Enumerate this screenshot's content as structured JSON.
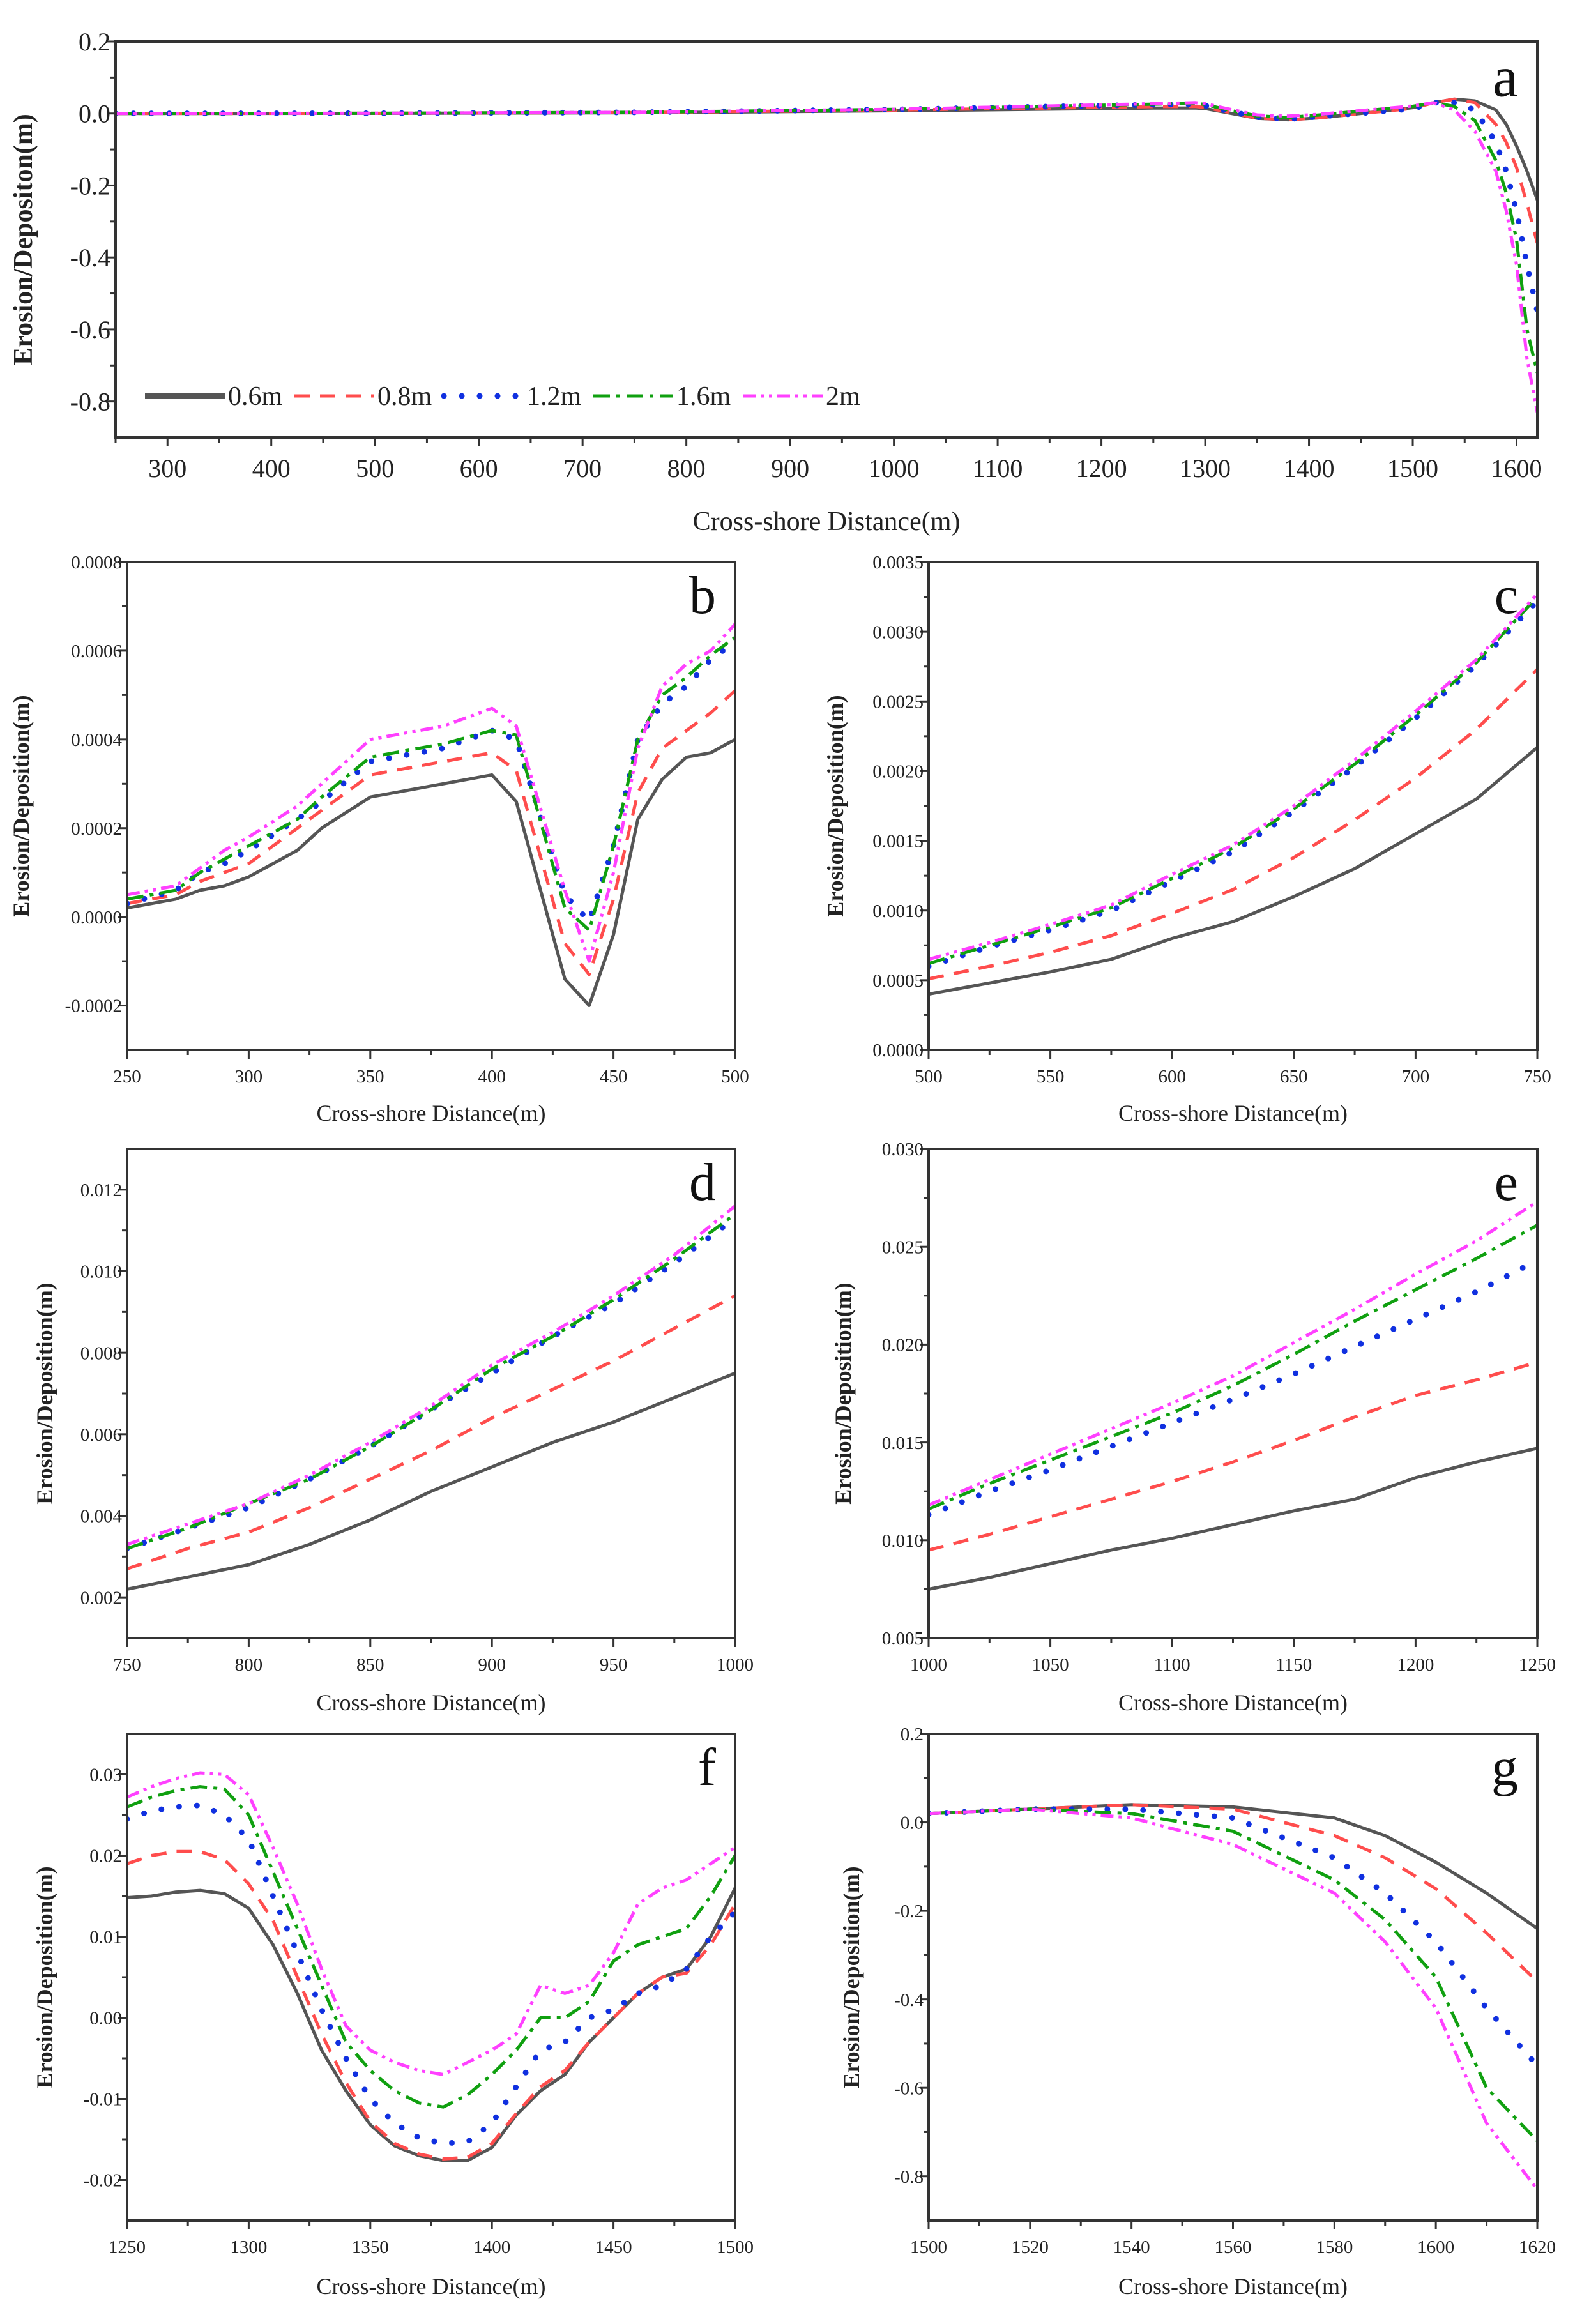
{
  "legend": [
    "0.6m",
    "0.8m",
    "1.2m",
    "1.6m",
    "2m"
  ],
  "series_colors": [
    "#555555",
    "#ff4d4d",
    "#1030e0",
    "#10a010",
    "#ff40ff"
  ],
  "chart_data": [
    {
      "type": "line",
      "label": "a",
      "xlabel": "Cross-shore Distance(m)",
      "ylabel": "Erosion/Depositon(m)",
      "xlim": [
        250,
        1620
      ],
      "ylim": [
        -0.9,
        0.2
      ],
      "xticks": [
        300,
        400,
        500,
        600,
        700,
        800,
        900,
        1000,
        1100,
        1200,
        1300,
        1400,
        1500,
        1600
      ],
      "yticks": [
        "0.2",
        "0.0",
        "-0.2",
        "-0.4",
        "-0.6",
        "-0.8"
      ],
      "x": [
        250,
        500,
        750,
        1000,
        1250,
        1290,
        1300,
        1320,
        1350,
        1380,
        1410,
        1450,
        1500,
        1520,
        1540,
        1560,
        1580,
        1590,
        1600,
        1610,
        1620
      ],
      "series": [
        {
          "name": "0.6m",
          "values": [
            0,
            0.0004,
            0.002,
            0.0075,
            0.015,
            0.0153,
            0.0135,
            0.003,
            -0.0132,
            -0.0176,
            -0.012,
            0,
            0.016,
            0.03,
            0.04,
            0.035,
            0.01,
            -0.03,
            -0.09,
            -0.16,
            -0.24
          ]
        },
        {
          "name": "0.8m",
          "values": [
            0,
            0.0005,
            0.0027,
            0.0095,
            0.019,
            0.0195,
            0.0165,
            0.005,
            -0.0128,
            -0.0174,
            -0.0118,
            0,
            0.014,
            0.03,
            0.04,
            0.03,
            -0.03,
            -0.08,
            -0.15,
            -0.25,
            -0.36
          ]
        },
        {
          "name": "1.2m",
          "values": [
            0,
            0.0006,
            0.0032,
            0.0113,
            0.0245,
            0.025,
            0.022,
            0.008,
            -0.01,
            -0.0155,
            -0.0085,
            0.001,
            0.013,
            0.03,
            0.03,
            0.01,
            -0.08,
            -0.16,
            -0.27,
            -0.42,
            -0.55
          ]
        },
        {
          "name": "1.6m",
          "values": [
            0,
            0.0006,
            0.0032,
            0.0116,
            0.026,
            0.0282,
            0.025,
            0.011,
            -0.0065,
            -0.011,
            -0.004,
            0.007,
            0.02,
            0.03,
            0.02,
            -0.02,
            -0.13,
            -0.22,
            -0.35,
            -0.6,
            -0.72
          ]
        },
        {
          "name": "2m",
          "values": [
            0,
            0.0007,
            0.0033,
            0.0118,
            0.0272,
            0.03,
            0.0275,
            0.014,
            -0.004,
            -0.007,
            -0.002,
            0.008,
            0.021,
            0.03,
            0.01,
            -0.05,
            -0.16,
            -0.27,
            -0.42,
            -0.68,
            -0.83
          ]
        }
      ]
    },
    {
      "type": "line",
      "label": "b",
      "xlabel": "Cross-shore Distance(m)",
      "ylabel": "Erosion/Deposition(m)",
      "xlim": [
        250,
        500
      ],
      "ylim": [
        -0.0003,
        0.0008
      ],
      "xticks": [
        250,
        300,
        350,
        400,
        450,
        500
      ],
      "yticks": [
        "0.0008",
        "0.0006",
        "0.0004",
        "0.0002",
        "0.0000",
        "-0.0002"
      ],
      "x": [
        250,
        270,
        280,
        290,
        300,
        320,
        330,
        350,
        380,
        400,
        410,
        430,
        440,
        450,
        460,
        470,
        480,
        490,
        500
      ],
      "series": [
        {
          "name": "0.6m",
          "values": [
            2e-05,
            4e-05,
            6e-05,
            7e-05,
            9e-05,
            0.00015,
            0.0002,
            0.00027,
            0.0003,
            0.00032,
            0.00026,
            -0.00014,
            -0.0002,
            -4e-05,
            0.00022,
            0.00031,
            0.00036,
            0.00037,
            0.0004
          ]
        },
        {
          "name": "0.8m",
          "values": [
            3e-05,
            5e-05,
            8e-05,
            0.0001,
            0.00012,
            0.0002,
            0.00024,
            0.00032,
            0.00035,
            0.00037,
            0.00033,
            -6e-05,
            -0.00013,
            4e-05,
            0.00028,
            0.00038,
            0.00042,
            0.00046,
            0.00051
          ]
        },
        {
          "name": "1.2m",
          "values": [
            3e-05,
            6e-05,
            0.0001,
            0.00012,
            0.00015,
            0.00022,
            0.00026,
            0.00035,
            0.00038,
            0.00042,
            0.0004,
            5e-05,
            -1e-05,
            0.00016,
            0.0004,
            0.00048,
            0.00052,
            0.00058,
            0.00062
          ]
        },
        {
          "name": "1.6m",
          "values": [
            4e-05,
            6e-05,
            0.0001,
            0.00013,
            0.00016,
            0.00022,
            0.00027,
            0.00036,
            0.00039,
            0.00042,
            0.00041,
            2e-05,
            -3e-05,
            0.00016,
            0.0004,
            0.0005,
            0.00054,
            0.00059,
            0.00063
          ]
        },
        {
          "name": "2m",
          "values": [
            5e-05,
            7e-05,
            0.00011,
            0.00015,
            0.00018,
            0.00025,
            0.0003,
            0.0004,
            0.00043,
            0.00047,
            0.00043,
            6e-05,
            -0.0001,
            0.0001,
            0.00038,
            0.00052,
            0.00057,
            0.0006,
            0.00066
          ]
        }
      ]
    },
    {
      "type": "line",
      "label": "c",
      "xlabel": "Cross-shore Distance(m)",
      "ylabel": "Erosion/Deposition(m)",
      "xlim": [
        500,
        750
      ],
      "ylim": [
        0,
        0.0035
      ],
      "xticks": [
        500,
        550,
        600,
        650,
        700,
        750
      ],
      "yticks": [
        "0.0035",
        "0.0030",
        "0.0025",
        "0.0020",
        "0.0015",
        "0.0010",
        "0.0005",
        "0.0000"
      ],
      "x": [
        500,
        525,
        550,
        575,
        600,
        625,
        650,
        675,
        700,
        725,
        750
      ],
      "series": [
        {
          "name": "0.6m",
          "values": [
            0.0004,
            0.00048,
            0.00056,
            0.00065,
            0.0008,
            0.00092,
            0.0011,
            0.0013,
            0.00155,
            0.0018,
            0.00217
          ]
        },
        {
          "name": "0.8m",
          "values": [
            0.00051,
            0.0006,
            0.0007,
            0.00082,
            0.00098,
            0.00115,
            0.00138,
            0.00165,
            0.00195,
            0.0023,
            0.00273
          ]
        },
        {
          "name": "1.2m",
          "values": [
            0.0006,
            0.00074,
            0.00086,
            0.001,
            0.00121,
            0.00142,
            0.00171,
            0.00203,
            0.00238,
            0.00276,
            0.00322
          ]
        },
        {
          "name": "1.6m",
          "values": [
            0.00062,
            0.00075,
            0.00088,
            0.00102,
            0.00123,
            0.00145,
            0.00173,
            0.00205,
            0.0024,
            0.00278,
            0.00325
          ]
        },
        {
          "name": "2m",
          "values": [
            0.00065,
            0.00077,
            0.0009,
            0.00104,
            0.00126,
            0.00147,
            0.00175,
            0.00208,
            0.00243,
            0.0028,
            0.00327
          ]
        }
      ]
    },
    {
      "type": "line",
      "label": "d",
      "xlabel": "Cross-shore Distance(m)",
      "ylabel": "Erosion/Deposition(m)",
      "xlim": [
        750,
        1000
      ],
      "ylim": [
        0.001,
        0.013
      ],
      "xticks": [
        750,
        800,
        850,
        900,
        950,
        1000
      ],
      "yticks": [
        "0.012",
        "0.010",
        "0.008",
        "0.006",
        "0.004",
        "0.002"
      ],
      "x": [
        750,
        775,
        800,
        825,
        850,
        875,
        900,
        925,
        950,
        975,
        1000
      ],
      "series": [
        {
          "name": "0.6m",
          "values": [
            0.0022,
            0.0025,
            0.0028,
            0.0033,
            0.0039,
            0.0046,
            0.0052,
            0.0058,
            0.0063,
            0.0069,
            0.0075
          ]
        },
        {
          "name": "0.8m",
          "values": [
            0.0027,
            0.0032,
            0.0036,
            0.0042,
            0.0049,
            0.0056,
            0.0064,
            0.0071,
            0.0078,
            0.0086,
            0.0094
          ]
        },
        {
          "name": "1.2m",
          "values": [
            0.0032,
            0.0037,
            0.0042,
            0.0049,
            0.0057,
            0.0066,
            0.0075,
            0.0084,
            0.0092,
            0.0102,
            0.0113
          ]
        },
        {
          "name": "1.6m",
          "values": [
            0.0032,
            0.0037,
            0.0043,
            0.0049,
            0.0057,
            0.0066,
            0.0076,
            0.0084,
            0.0093,
            0.0103,
            0.0114
          ]
        },
        {
          "name": "2m",
          "values": [
            0.0033,
            0.0038,
            0.0043,
            0.005,
            0.0058,
            0.0067,
            0.0077,
            0.0085,
            0.0094,
            0.0104,
            0.0116
          ]
        }
      ]
    },
    {
      "type": "line",
      "label": "e",
      "xlabel": "Cross-shore Distance(m)",
      "ylabel": "Erosion/Deposition(m)",
      "xlim": [
        1000,
        1250
      ],
      "ylim": [
        0.005,
        0.03
      ],
      "xticks": [
        1000,
        1050,
        1100,
        1150,
        1200,
        1250
      ],
      "yticks": [
        "0.030",
        "0.025",
        "0.020",
        "0.015",
        "0.010",
        "0.005"
      ],
      "x": [
        1000,
        1025,
        1050,
        1075,
        1100,
        1125,
        1150,
        1175,
        1200,
        1225,
        1250
      ],
      "series": [
        {
          "name": "0.6m",
          "values": [
            0.0075,
            0.0081,
            0.0088,
            0.0095,
            0.0101,
            0.0108,
            0.0115,
            0.0121,
            0.0132,
            0.014,
            0.0147
          ]
        },
        {
          "name": "0.8m",
          "values": [
            0.0095,
            0.0103,
            0.0112,
            0.0121,
            0.013,
            0.014,
            0.0151,
            0.0163,
            0.0174,
            0.0182,
            0.0191
          ]
        },
        {
          "name": "1.2m",
          "values": [
            0.0113,
            0.0125,
            0.0136,
            0.0148,
            0.016,
            0.0172,
            0.0185,
            0.0199,
            0.0213,
            0.0227,
            0.0243
          ]
        },
        {
          "name": "1.6m",
          "values": [
            0.0116,
            0.0129,
            0.0141,
            0.0153,
            0.0165,
            0.0179,
            0.0195,
            0.0212,
            0.0228,
            0.0244,
            0.0261
          ]
        },
        {
          "name": "2m",
          "values": [
            0.0118,
            0.0131,
            0.0144,
            0.0157,
            0.017,
            0.0184,
            0.0201,
            0.0218,
            0.0236,
            0.0253,
            0.0273
          ]
        }
      ]
    },
    {
      "type": "line",
      "label": "f",
      "xlabel": "Cross-shore Distance(m)",
      "ylabel": "Erosion/Deposition(m)",
      "xlim": [
        1250,
        1500
      ],
      "ylim": [
        -0.025,
        0.035
      ],
      "xticks": [
        1250,
        1300,
        1350,
        1400,
        1450,
        1500
      ],
      "yticks": [
        "0.03",
        "0.02",
        "0.01",
        "0.00",
        "-0.01",
        "-0.02"
      ],
      "x": [
        1250,
        1260,
        1270,
        1280,
        1290,
        1300,
        1310,
        1320,
        1330,
        1340,
        1350,
        1360,
        1370,
        1380,
        1390,
        1400,
        1410,
        1420,
        1430,
        1440,
        1450,
        1460,
        1470,
        1480,
        1490,
        1500
      ],
      "series": [
        {
          "name": "0.6m",
          "values": [
            0.0148,
            0.015,
            0.0155,
            0.0157,
            0.0153,
            0.0135,
            0.009,
            0.003,
            -0.004,
            -0.009,
            -0.0132,
            -0.0158,
            -0.017,
            -0.0176,
            -0.0176,
            -0.016,
            -0.012,
            -0.009,
            -0.007,
            -0.003,
            0,
            0.003,
            0.005,
            0.006,
            0.01,
            0.016
          ]
        },
        {
          "name": "0.8m",
          "values": [
            0.019,
            0.02,
            0.0205,
            0.0205,
            0.0195,
            0.0165,
            0.012,
            0.005,
            -0.002,
            -0.008,
            -0.0128,
            -0.0155,
            -0.0168,
            -0.0174,
            -0.0172,
            -0.0155,
            -0.0118,
            -0.0085,
            -0.0065,
            -0.003,
            0,
            0.003,
            0.005,
            0.0055,
            0.009,
            0.014
          ]
        },
        {
          "name": "1.2m",
          "values": [
            0.0245,
            0.0255,
            0.026,
            0.0262,
            0.025,
            0.022,
            0.015,
            0.008,
            0.001,
            -0.005,
            -0.01,
            -0.013,
            -0.0148,
            -0.0155,
            -0.0153,
            -0.013,
            -0.0085,
            -0.004,
            -0.003,
            0,
            0.001,
            0.003,
            0.004,
            0.006,
            0.01,
            0.013
          ]
        },
        {
          "name": "1.6m",
          "values": [
            0.026,
            0.0272,
            0.028,
            0.0285,
            0.0282,
            0.025,
            0.018,
            0.011,
            0.004,
            -0.003,
            -0.0065,
            -0.009,
            -0.0105,
            -0.011,
            -0.0095,
            -0.007,
            -0.004,
            0,
            0,
            0.002,
            0.007,
            0.009,
            0.01,
            0.011,
            0.015,
            0.02
          ]
        },
        {
          "name": "2m",
          "values": [
            0.0272,
            0.0285,
            0.0295,
            0.0302,
            0.03,
            0.0275,
            0.021,
            0.014,
            0.006,
            -0.001,
            -0.004,
            -0.0055,
            -0.0065,
            -0.007,
            -0.0055,
            -0.004,
            -0.002,
            0.004,
            0.003,
            0.004,
            0.008,
            0.014,
            0.016,
            0.017,
            0.019,
            0.021
          ]
        }
      ]
    },
    {
      "type": "line",
      "label": "g",
      "xlabel": "Cross-shore Distance(m)",
      "ylabel": "Erosion/Deposition(m)",
      "xlim": [
        1500,
        1620
      ],
      "ylim": [
        -0.9,
        0.2
      ],
      "xticks": [
        1500,
        1520,
        1540,
        1560,
        1580,
        1600,
        1620
      ],
      "yticks": [
        "0.2",
        "0.0",
        "-0.2",
        "-0.4",
        "-0.6",
        "-0.8"
      ],
      "x": [
        1500,
        1520,
        1540,
        1560,
        1580,
        1590,
        1600,
        1610,
        1620
      ],
      "series": [
        {
          "name": "0.6m",
          "values": [
            0.02,
            0.03,
            0.04,
            0.035,
            0.01,
            -0.03,
            -0.09,
            -0.16,
            -0.24
          ]
        },
        {
          "name": "0.8m",
          "values": [
            0.02,
            0.03,
            0.04,
            0.03,
            -0.03,
            -0.08,
            -0.15,
            -0.25,
            -0.36
          ]
        },
        {
          "name": "1.2m",
          "values": [
            0.02,
            0.03,
            0.03,
            0.01,
            -0.08,
            -0.16,
            -0.27,
            -0.42,
            -0.55
          ]
        },
        {
          "name": "1.6m",
          "values": [
            0.02,
            0.03,
            0.02,
            -0.02,
            -0.13,
            -0.22,
            -0.35,
            -0.6,
            -0.72
          ]
        },
        {
          "name": "2m",
          "values": [
            0.02,
            0.03,
            0.01,
            -0.05,
            -0.16,
            -0.27,
            -0.42,
            -0.68,
            -0.83
          ]
        }
      ]
    }
  ]
}
